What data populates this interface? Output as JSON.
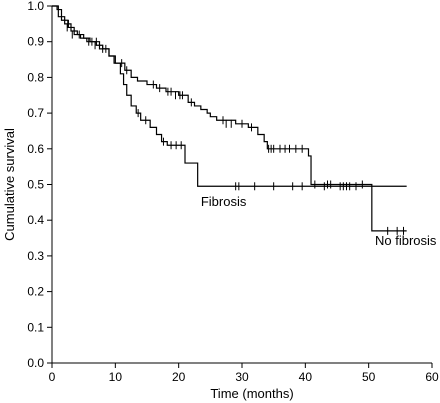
{
  "chart_data": {
    "type": "line",
    "xlabel": "Time (months)",
    "ylabel": "Cumulative survival",
    "xlim": [
      0,
      60
    ],
    "ylim": [
      0.0,
      1.0
    ],
    "xticks": [
      0,
      10,
      20,
      30,
      40,
      50,
      60
    ],
    "yticks": [
      0.0,
      0.1,
      0.2,
      0.3,
      0.4,
      0.5,
      0.6,
      0.7,
      0.8,
      0.9,
      1.0
    ],
    "xtick_labels": [
      "0",
      "10",
      "20",
      "30",
      "40",
      "50",
      "60"
    ],
    "ytick_labels": [
      "0.0",
      "0.1",
      "0.2",
      "0.3",
      "0.4",
      "0.5",
      "0.6",
      "0.7",
      "0.8",
      "0.9",
      "1.0"
    ],
    "annotations": [
      {
        "text": "Fibrosis",
        "x": 23.5,
        "y": 0.44
      },
      {
        "text": "No fibrosis",
        "x": 51.0,
        "y": 0.33
      }
    ],
    "series": [
      {
        "name": "Fibrosis",
        "steps": [
          [
            0,
            1.0
          ],
          [
            0.8,
            0.99
          ],
          [
            1.5,
            0.96
          ],
          [
            2.5,
            0.94
          ],
          [
            3.5,
            0.92
          ],
          [
            4.5,
            0.91
          ],
          [
            5.5,
            0.9
          ],
          [
            7.0,
            0.89
          ],
          [
            8.0,
            0.88
          ],
          [
            9.0,
            0.86
          ],
          [
            9.8,
            0.84
          ],
          [
            10.8,
            0.81
          ],
          [
            11.3,
            0.78
          ],
          [
            11.8,
            0.75
          ],
          [
            12.5,
            0.72
          ],
          [
            13.3,
            0.7
          ],
          [
            14.0,
            0.68
          ],
          [
            15.5,
            0.66
          ],
          [
            16.5,
            0.64
          ],
          [
            17.3,
            0.62
          ],
          [
            18.2,
            0.61
          ],
          [
            21.0,
            0.56
          ],
          [
            23.0,
            0.495
          ],
          [
            56.0,
            0.495
          ]
        ],
        "censored": [
          [
            2.4,
            0.94
          ],
          [
            3.2,
            0.92
          ],
          [
            5.8,
            0.9
          ],
          [
            6.8,
            0.89
          ],
          [
            8.5,
            0.88
          ],
          [
            13.6,
            0.7
          ],
          [
            14.8,
            0.68
          ],
          [
            17.6,
            0.62
          ],
          [
            18.8,
            0.61
          ],
          [
            19.6,
            0.61
          ],
          [
            20.4,
            0.61
          ],
          [
            29.0,
            0.495
          ],
          [
            29.5,
            0.495
          ],
          [
            32.0,
            0.495
          ],
          [
            35.0,
            0.495
          ],
          [
            38.0,
            0.495
          ],
          [
            39.5,
            0.495
          ],
          [
            43.0,
            0.495
          ],
          [
            45.5,
            0.495
          ],
          [
            46.0,
            0.495
          ],
          [
            46.5,
            0.495
          ],
          [
            47.0,
            0.495
          ],
          [
            48.0,
            0.495
          ]
        ]
      },
      {
        "name": "No fibrosis",
        "steps": [
          [
            0,
            1.0
          ],
          [
            1.0,
            0.97
          ],
          [
            2.0,
            0.95
          ],
          [
            3.0,
            0.93
          ],
          [
            4.0,
            0.92
          ],
          [
            5.0,
            0.91
          ],
          [
            6.0,
            0.9
          ],
          [
            7.5,
            0.88
          ],
          [
            9.0,
            0.86
          ],
          [
            10.0,
            0.84
          ],
          [
            11.5,
            0.82
          ],
          [
            12.5,
            0.8
          ],
          [
            13.5,
            0.79
          ],
          [
            15.0,
            0.78
          ],
          [
            16.5,
            0.77
          ],
          [
            18.0,
            0.76
          ],
          [
            20.0,
            0.75
          ],
          [
            21.5,
            0.73
          ],
          [
            22.5,
            0.72
          ],
          [
            23.5,
            0.71
          ],
          [
            24.5,
            0.7
          ],
          [
            25.0,
            0.69
          ],
          [
            26.0,
            0.68
          ],
          [
            29.0,
            0.67
          ],
          [
            31.0,
            0.66
          ],
          [
            32.5,
            0.64
          ],
          [
            33.5,
            0.62
          ],
          [
            34.0,
            0.6
          ],
          [
            40.5,
            0.58
          ],
          [
            40.9,
            0.5
          ],
          [
            50.3,
            0.5
          ],
          [
            50.5,
            0.37
          ],
          [
            56.0,
            0.37
          ]
        ],
        "censored": [
          [
            2.6,
            0.95
          ],
          [
            4.3,
            0.92
          ],
          [
            6.3,
            0.9
          ],
          [
            7.0,
            0.9
          ],
          [
            8.0,
            0.88
          ],
          [
            11.0,
            0.84
          ],
          [
            11.8,
            0.82
          ],
          [
            16.0,
            0.78
          ],
          [
            17.0,
            0.77
          ],
          [
            18.3,
            0.76
          ],
          [
            18.8,
            0.76
          ],
          [
            19.5,
            0.75
          ],
          [
            20.2,
            0.75
          ],
          [
            20.6,
            0.75
          ],
          [
            22.0,
            0.73
          ],
          [
            27.0,
            0.68
          ],
          [
            27.5,
            0.67
          ],
          [
            28.3,
            0.67
          ],
          [
            30.0,
            0.67
          ],
          [
            31.5,
            0.66
          ],
          [
            34.2,
            0.6
          ],
          [
            34.6,
            0.6
          ],
          [
            35.0,
            0.6
          ],
          [
            36.0,
            0.6
          ],
          [
            36.8,
            0.6
          ],
          [
            37.5,
            0.6
          ],
          [
            38.5,
            0.6
          ],
          [
            39.5,
            0.6
          ],
          [
            41.5,
            0.5
          ],
          [
            43.5,
            0.5
          ],
          [
            44.0,
            0.5
          ],
          [
            49.0,
            0.5
          ],
          [
            53.0,
            0.37
          ],
          [
            54.5,
            0.37
          ],
          [
            55.5,
            0.37
          ]
        ]
      }
    ]
  }
}
